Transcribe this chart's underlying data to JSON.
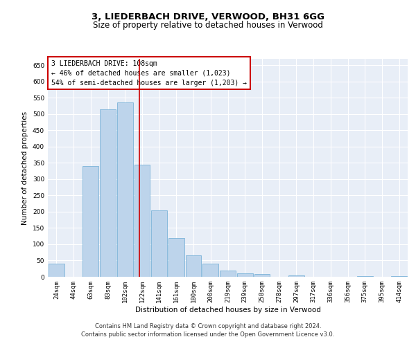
{
  "title_line1": "3, LIEDERBACH DRIVE, VERWOOD, BH31 6GG",
  "title_line2": "Size of property relative to detached houses in Verwood",
  "xlabel": "Distribution of detached houses by size in Verwood",
  "ylabel": "Number of detached properties",
  "categories": [
    "24sqm",
    "44sqm",
    "63sqm",
    "83sqm",
    "102sqm",
    "122sqm",
    "141sqm",
    "161sqm",
    "180sqm",
    "200sqm",
    "219sqm",
    "239sqm",
    "258sqm",
    "278sqm",
    "297sqm",
    "317sqm",
    "336sqm",
    "356sqm",
    "375sqm",
    "395sqm",
    "414sqm"
  ],
  "values": [
    40,
    0,
    340,
    515,
    535,
    345,
    205,
    120,
    65,
    40,
    20,
    10,
    8,
    0,
    4,
    0,
    0,
    0,
    2,
    0,
    2
  ],
  "bar_color": "#bdd4eb",
  "bar_edge_color": "#6aaad4",
  "vline_x": 4.85,
  "vline_color": "#cc0000",
  "annotation_box_text": "3 LIEDERBACH DRIVE: 108sqm\n← 46% of detached houses are smaller (1,023)\n54% of semi-detached houses are larger (1,203) →",
  "annotation_box_color": "#cc0000",
  "annotation_box_facecolor": "white",
  "ylim": [
    0,
    670
  ],
  "yticks": [
    0,
    50,
    100,
    150,
    200,
    250,
    300,
    350,
    400,
    450,
    500,
    550,
    600,
    650
  ],
  "background_color": "#e8eef7",
  "footer_line1": "Contains HM Land Registry data © Crown copyright and database right 2024.",
  "footer_line2": "Contains public sector information licensed under the Open Government Licence v3.0.",
  "title_fontsize": 9.5,
  "subtitle_fontsize": 8.5,
  "axis_label_fontsize": 7.5,
  "tick_fontsize": 6.5,
  "annot_fontsize": 7,
  "footer_fontsize": 6
}
